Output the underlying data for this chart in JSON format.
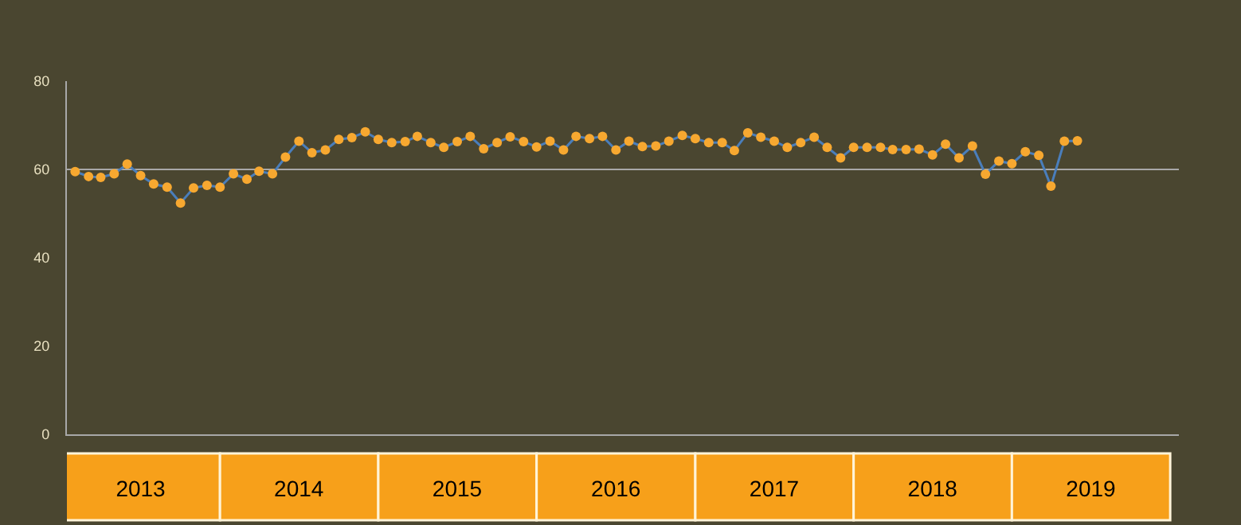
{
  "chart_data": {
    "type": "line",
    "x": [
      "2013-01",
      "2013-02",
      "2013-03",
      "2013-04",
      "2013-05",
      "2013-06",
      "2013-07",
      "2013-08",
      "2013-09",
      "2013-10",
      "2013-11",
      "2013-12",
      "2014-01",
      "2014-02",
      "2014-03",
      "2014-04",
      "2014-05",
      "2014-06",
      "2014-07",
      "2014-08",
      "2014-09",
      "2014-10",
      "2014-11",
      "2014-12",
      "2015-01",
      "2015-02",
      "2015-03",
      "2015-04",
      "2015-05",
      "2015-06",
      "2015-07",
      "2015-08",
      "2015-09",
      "2015-10",
      "2015-11",
      "2015-12",
      "2016-01",
      "2016-02",
      "2016-03",
      "2016-04",
      "2016-05",
      "2016-06",
      "2016-07",
      "2016-08",
      "2016-09",
      "2016-10",
      "2016-11",
      "2016-12",
      "2017-01",
      "2017-02",
      "2017-03",
      "2017-04",
      "2017-05",
      "2017-06",
      "2017-07",
      "2017-08",
      "2017-09",
      "2017-10",
      "2017-11",
      "2017-12",
      "2018-01",
      "2018-02",
      "2018-03",
      "2018-04",
      "2018-05",
      "2018-06",
      "2018-07",
      "2018-08",
      "2018-09",
      "2018-10",
      "2018-11",
      "2018-12",
      "2019-01",
      "2019-02",
      "2019-03",
      "2019-04",
      "2019-05"
    ],
    "series": [
      {
        "color": "#4a7ebb",
        "values": [
          59.5,
          58.4,
          58.2,
          59.0,
          61.2,
          58.6,
          56.7,
          56.0,
          52.4,
          55.8,
          56.4,
          56.0,
          59.0,
          57.8,
          59.6,
          59.0,
          62.8,
          66.4,
          63.8,
          64.4,
          66.8,
          67.2,
          68.5,
          66.8,
          66.1,
          66.3,
          67.5,
          66.1,
          65.0,
          66.3,
          67.5,
          64.7,
          66.1,
          67.4,
          66.3,
          65.1,
          66.4,
          64.4,
          67.5,
          67.0,
          67.5,
          64.4,
          66.4,
          65.2,
          65.3,
          66.4,
          67.7,
          67.0,
          66.1,
          66.1,
          64.3,
          68.3,
          67.3,
          66.4,
          65.0,
          66.1,
          67.3,
          65.0,
          62.6,
          65.0,
          65.0,
          65.0,
          64.5,
          64.5,
          64.6,
          63.3,
          65.7,
          62.6,
          65.3,
          58.9,
          61.9,
          61.3,
          64.0,
          63.2,
          56.2,
          66.4,
          66.5
        ]
      }
    ],
    "marker": "circle",
    "line_style": "solid",
    "xlim": [
      "2012-12-13",
      "2019-12-21"
    ],
    "xticks": [
      {
        "value": "2013-06-01",
        "label": "2013"
      },
      {
        "value": "2014-06-01",
        "label": "2014"
      },
      {
        "value": "2015-06-01",
        "label": "2015"
      },
      {
        "value": "2016-06-01",
        "label": "2016"
      },
      {
        "value": "2017-06-01",
        "label": "2017"
      },
      {
        "value": "2018-06-01",
        "label": "2018"
      },
      {
        "value": "2019-06-01",
        "label": "2019"
      }
    ],
    "ylim": [
      0,
      80
    ],
    "yticks": [
      0,
      20,
      40,
      60,
      80
    ],
    "ref_lines": [
      {
        "axis": "y",
        "value": 60,
        "color": "#a8a8a8"
      }
    ],
    "grid": false
  }
}
